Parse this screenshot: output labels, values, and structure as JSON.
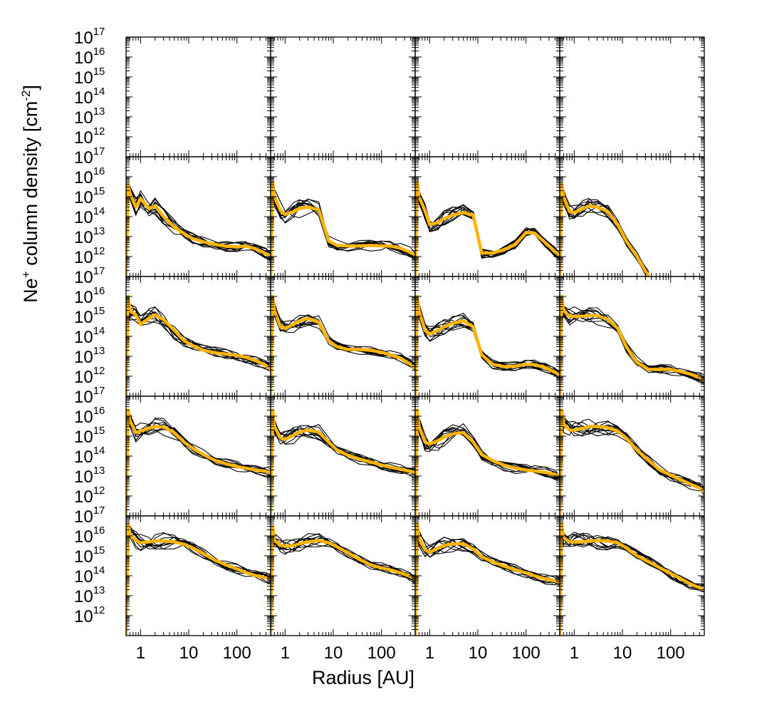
{
  "chart_data": {
    "type": "line",
    "layout": {
      "rows": 5,
      "cols": 4
    },
    "xlabel": "Radius [AU]",
    "ylabel": {
      "base": "Ne",
      "sup": "+",
      "text": " column density [cm",
      "unit_sup": "-2",
      "close": "]"
    },
    "xscale": "log",
    "yscale": "log",
    "xlim": [
      0.5,
      500
    ],
    "ylim": [
      100000000000.0,
      1e+17
    ],
    "xticks": [
      {
        "value": 1,
        "label": "1"
      },
      {
        "value": 10,
        "label": "10"
      },
      {
        "value": 100,
        "label": "100"
      }
    ],
    "yticks": [
      {
        "value": 1000000000000.0,
        "base": "10",
        "exp": "12"
      },
      {
        "value": 10000000000000.0,
        "base": "10",
        "exp": "13"
      },
      {
        "value": 100000000000000.0,
        "base": "10",
        "exp": "14"
      },
      {
        "value": 1000000000000000.0,
        "base": "10",
        "exp": "15"
      },
      {
        "value": 1e+16,
        "base": "10",
        "exp": "16"
      },
      {
        "value": 1e+17,
        "base": "10",
        "exp": "17"
      }
    ],
    "series_style": {
      "models": "#000000",
      "mean": "#FFB400"
    },
    "radius_au": [
      0.5,
      0.55,
      0.6,
      0.8,
      1,
      1.5,
      2,
      3,
      5,
      8,
      12,
      20,
      35,
      60,
      100,
      150,
      250,
      400,
      500
    ],
    "panels": [
      {
        "row": 0,
        "col": 0,
        "mean": []
      },
      {
        "row": 0,
        "col": 1,
        "mean": []
      },
      {
        "row": 0,
        "col": 2,
        "mean": []
      },
      {
        "row": 0,
        "col": 3,
        "mean": []
      },
      {
        "row": 1,
        "col": 0,
        "mean": [
          100000000000.0,
          4000000000000000.0,
          1500000000000000.0,
          300000000000000.0,
          800000000000000.0,
          250000000000000.0,
          350000000000000.0,
          100000000000000.0,
          30000000000000.0,
          14000000000000.0,
          8000000000000.0,
          5500000000000.0,
          4000000000000.0,
          3300000000000.0,
          3000000000000.0,
          3400000000000.0,
          2400000000000.0,
          1400000000000.0,
          1100000000000.0
        ]
      },
      {
        "row": 1,
        "col": 1,
        "mean": [
          100000000000.0,
          5000000000000000.0,
          1000000000000000.0,
          200000000000000.0,
          130000000000000.0,
          180000000000000.0,
          260000000000000.0,
          300000000000000.0,
          220000000000000.0,
          6000000000000.0,
          3600000000000.0,
          3400000000000.0,
          3400000000000.0,
          3600000000000.0,
          3400000000000.0,
          3400000000000.0,
          2600000000000.0,
          1600000000000.0,
          1200000000000.0
        ]
      },
      {
        "row": 1,
        "col": 2,
        "mean": [
          100000000000.0,
          5000000000000000.0,
          1000000000000000.0,
          200000000000000.0,
          40000000000000.0,
          50000000000000.0,
          80000000000000.0,
          120000000000000.0,
          160000000000000.0,
          120000000000000.0,
          1500000000000.0,
          1500000000000.0,
          2200000000000.0,
          4000000000000.0,
          16000000000000.0,
          15000000000000.0,
          5000000000000.0,
          1800000000000.0,
          1100000000000.0
        ]
      },
      {
        "row": 1,
        "col": 3,
        "mean": [
          100000000000.0,
          4000000000000000.0,
          1000000000000000.0,
          180000000000000.0,
          160000000000000.0,
          250000000000000.0,
          350000000000000.0,
          300000000000000.0,
          180000000000000.0,
          40000000000000.0,
          6000000000000.0,
          1000000000000.0,
          100000000000.0,
          null,
          null,
          null,
          null,
          null,
          null
        ]
      },
      {
        "row": 2,
        "col": 0,
        "mean": [
          100000000000.0,
          1e+16,
          2000000000000000.0,
          1200000000000000.0,
          400000000000000.0,
          800000000000000.0,
          1200000000000000.0,
          700000000000000.0,
          200000000000000.0,
          60000000000000.0,
          35000000000000.0,
          20000000000000.0,
          15000000000000.0,
          13000000000000.0,
          11000000000000.0,
          9000000000000.0,
          6000000000000.0,
          3500000000000.0,
          2200000000000.0
        ]
      },
      {
        "row": 2,
        "col": 1,
        "mean": [
          100000000000.0,
          1e+16,
          2000000000000000.0,
          300000000000000.0,
          250000000000000.0,
          400000000000000.0,
          600000000000000.0,
          800000000000000.0,
          500000000000000.0,
          60000000000000.0,
          30000000000000.0,
          22000000000000.0,
          22000000000000.0,
          20000000000000.0,
          16000000000000.0,
          12000000000000.0,
          8000000000000.0,
          4000000000000.0,
          2500000000000.0
        ]
      },
      {
        "row": 2,
        "col": 2,
        "mean": [
          100000000000.0,
          1e+16,
          2000000000000000.0,
          200000000000000.0,
          130000000000000.0,
          200000000000000.0,
          300000000000000.0,
          450000000000000.0,
          600000000000000.0,
          300000000000000.0,
          12000000000000.0,
          4000000000000.0,
          3000000000000.0,
          3200000000000.0,
          4000000000000.0,
          3800000000000.0,
          2700000000000.0,
          1600000000000.0,
          1100000000000.0
        ]
      },
      {
        "row": 2,
        "col": 3,
        "mean": [
          100000000000.0,
          1e+16,
          2000000000000000.0,
          1000000000000000.0,
          1000000000000000.0,
          1000000000000000.0,
          1100000000000000.0,
          1100000000000000.0,
          700000000000000.0,
          250000000000000.0,
          30000000000000.0,
          5000000000000.0,
          2200000000000.0,
          2200000000000.0,
          2200000000000.0,
          1800000000000.0,
          1300000000000.0,
          900000000000.0,
          600000000000.0
        ]
      },
      {
        "row": 3,
        "col": 0,
        "mean": [
          100000000000.0,
          2e+16,
          6000000000000000.0,
          1500000000000000.0,
          1800000000000000.0,
          2500000000000000.0,
          3000000000000000.0,
          2800000000000000.0,
          1500000000000000.0,
          500000000000000.0,
          250000000000000.0,
          120000000000000.0,
          60000000000000.0,
          40000000000000.0,
          30000000000000.0,
          25000000000000.0,
          20000000000000.0,
          17000000000000.0,
          14000000000000.0
        ]
      },
      {
        "row": 3,
        "col": 1,
        "mean": [
          100000000000.0,
          2e+16,
          3000000000000000.0,
          800000000000000.0,
          700000000000000.0,
          1100000000000000.0,
          1600000000000000.0,
          2000000000000000.0,
          1600000000000000.0,
          500000000000000.0,
          200000000000000.0,
          110000000000000.0,
          70000000000000.0,
          50000000000000.0,
          35000000000000.0,
          28000000000000.0,
          22000000000000.0,
          17000000000000.0,
          15000000000000.0
        ]
      },
      {
        "row": 3,
        "col": 2,
        "mean": [
          100000000000.0,
          2e+16,
          3000000000000000.0,
          500000000000000.0,
          400000000000000.0,
          600000000000000.0,
          900000000000000.0,
          1300000000000000.0,
          1500000000000000.0,
          500000000000000.0,
          120000000000000.0,
          60000000000000.0,
          35000000000000.0,
          25000000000000.0,
          20000000000000.0,
          18000000000000.0,
          15000000000000.0,
          12000000000000.0,
          10000000000000.0
        ]
      },
      {
        "row": 3,
        "col": 3,
        "mean": [
          100000000000.0,
          2e+16,
          4000000000000000.0,
          2000000000000000.0,
          2000000000000000.0,
          2400000000000000.0,
          3000000000000000.0,
          3000000000000000.0,
          2600000000000000.0,
          1800000000000000.0,
          800000000000000.0,
          200000000000000.0,
          60000000000000.0,
          20000000000000.0,
          11000000000000.0,
          7000000000000.0,
          4000000000000.0,
          2500000000000.0,
          1600000000000.0
        ]
      },
      {
        "row": 4,
        "col": 0,
        "mean": [
          100000000000.0,
          4e+16,
          1.2e+16,
          6000000000000000.0,
          4500000000000000.0,
          5000000000000000.0,
          5500000000000000.0,
          5500000000000000.0,
          5000000000000000.0,
          3800000000000000.0,
          2500000000000000.0,
          1300000000000000.0,
          600000000000000.0,
          350000000000000.0,
          220000000000000.0,
          150000000000000.0,
          100000000000000.0,
          80000000000000.0,
          70000000000000.0
        ]
      },
      {
        "row": 4,
        "col": 1,
        "mean": [
          100000000000.0,
          3e+16,
          6000000000000000.0,
          3500000000000000.0,
          3000000000000000.0,
          3300000000000000.0,
          4000000000000000.0,
          5000000000000000.0,
          5800000000000000.0,
          4500000000000000.0,
          2800000000000000.0,
          1400000000000000.0,
          650000000000000.0,
          350000000000000.0,
          250000000000000.0,
          200000000000000.0,
          140000000000000.0,
          90000000000000.0,
          70000000000000.0
        ]
      },
      {
        "row": 4,
        "col": 2,
        "mean": [
          100000000000.0,
          4e+16,
          8000000000000000.0,
          2000000000000000.0,
          1500000000000000.0,
          2500000000000000.0,
          3300000000000000.0,
          4000000000000000.0,
          4000000000000000.0,
          2200000000000000.0,
          900000000000000.0,
          500000000000000.0,
          300000000000000.0,
          200000000000000.0,
          140000000000000.0,
          100000000000000.0,
          70000000000000.0,
          55000000000000.0,
          45000000000000.0
        ]
      },
      {
        "row": 4,
        "col": 3,
        "mean": [
          100000000000.0,
          4e+16,
          8000000000000000.0,
          5000000000000000.0,
          5000000000000000.0,
          5000000000000000.0,
          5500000000000000.0,
          5800000000000000.0,
          5500000000000000.0,
          4500000000000000.0,
          2500000000000000.0,
          1000000000000000.0,
          500000000000000.0,
          250000000000000.0,
          130000000000000.0,
          80000000000000.0,
          40000000000000.0,
          25000000000000.0,
          20000000000000.0
        ]
      }
    ]
  }
}
